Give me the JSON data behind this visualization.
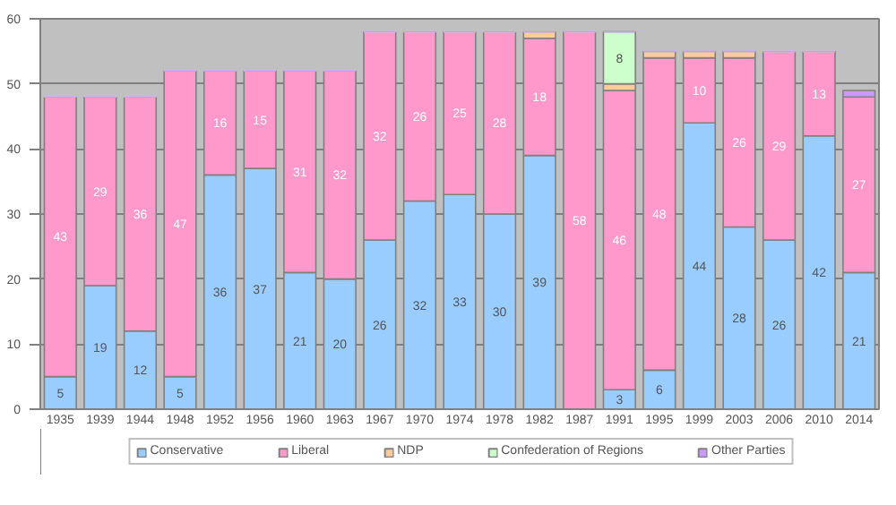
{
  "chart_data": {
    "type": "bar",
    "stacked": true,
    "categories": [
      "1935",
      "1939",
      "1944",
      "1948",
      "1952",
      "1956",
      "1960",
      "1963",
      "1967",
      "1970",
      "1974",
      "1978",
      "1982",
      "1987",
      "1991",
      "1995",
      "1999",
      "2003",
      "2006",
      "2010",
      "2014"
    ],
    "ylim": [
      0,
      60
    ],
    "yticks": [
      0,
      10,
      20,
      30,
      40,
      50,
      60
    ],
    "grid": "y",
    "legend": "bottom",
    "series": [
      {
        "name": "Conservative",
        "color": "#99ccff",
        "values": [
          5,
          19,
          12,
          5,
          36,
          37,
          21,
          20,
          26,
          32,
          33,
          30,
          39,
          0,
          3,
          6,
          44,
          28,
          26,
          42,
          21
        ],
        "value_labels": [
          "5",
          "19",
          "12",
          "5",
          "36",
          "37",
          "21",
          "20",
          "26",
          "32",
          "33",
          "30",
          "39",
          null,
          "3",
          "6",
          "44",
          "28",
          "26",
          "42",
          "21"
        ]
      },
      {
        "name": "Liberal",
        "color": "#ff99cc",
        "values": [
          43,
          29,
          36,
          47,
          16,
          15,
          31,
          32,
          32,
          26,
          25,
          28,
          18,
          58,
          46,
          48,
          10,
          26,
          29,
          13,
          27
        ],
        "value_labels": [
          "43",
          "29",
          "36",
          "47",
          "16",
          "15",
          "31",
          "32",
          "32",
          "26",
          "25",
          "28",
          "18",
          "58",
          "46",
          "48",
          "10",
          "26",
          "29",
          "13",
          "27"
        ]
      },
      {
        "name": "NDP",
        "color": "#ffcc99",
        "values": [
          0,
          0,
          0,
          0,
          0,
          0,
          0,
          0,
          0,
          0,
          0,
          0,
          1,
          0,
          1,
          1,
          1,
          1,
          0,
          0,
          0
        ]
      },
      {
        "name": "Confederation of Regions",
        "color": "#ccffcc",
        "values": [
          0,
          0,
          0,
          0,
          0,
          0,
          0,
          0,
          0,
          0,
          0,
          0,
          0,
          0,
          8,
          0,
          0,
          0,
          0,
          0,
          0
        ],
        "value_labels": [
          null,
          null,
          null,
          null,
          null,
          null,
          null,
          null,
          null,
          null,
          null,
          null,
          null,
          null,
          "8",
          null,
          null,
          null,
          null,
          null,
          null
        ]
      },
      {
        "name": "Other Parties",
        "color": "#cc99ff",
        "values": [
          0,
          0,
          0,
          0,
          0,
          0,
          0,
          0,
          0,
          0,
          0,
          0,
          0,
          0,
          0,
          0,
          0,
          0,
          0,
          0,
          1
        ]
      }
    ]
  }
}
